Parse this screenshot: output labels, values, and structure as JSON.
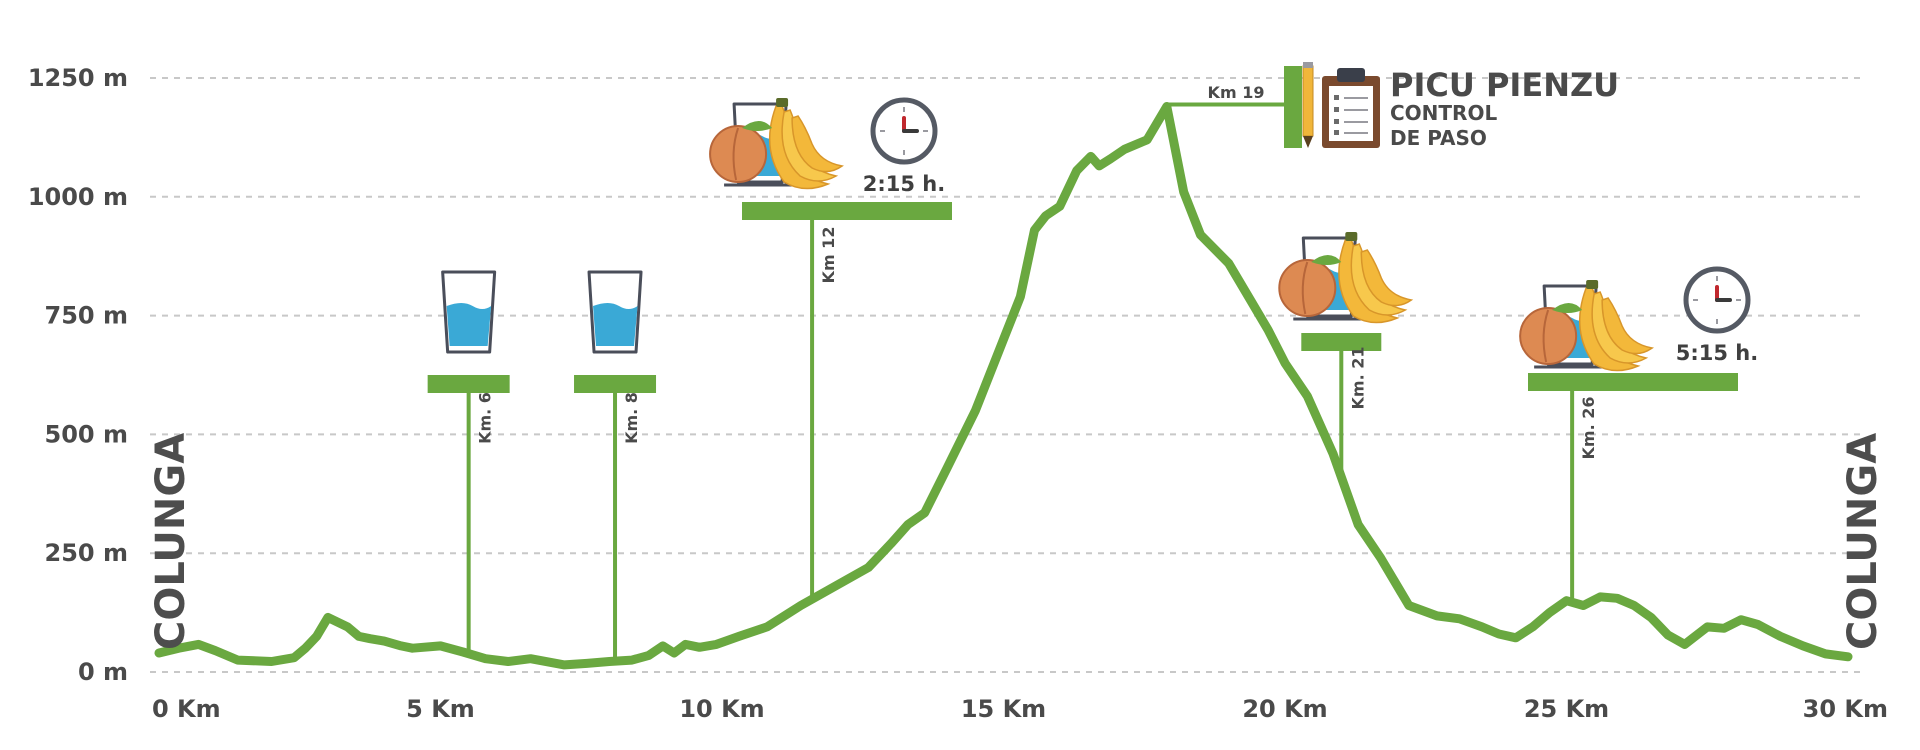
{
  "chart_data": {
    "type": "line",
    "title": "",
    "xlabel": "",
    "ylabel": "",
    "x_unit": "Km",
    "y_unit": "m",
    "xlim": [
      0,
      30
    ],
    "ylim": [
      0,
      1250
    ],
    "x_ticks": [
      "0 Km",
      "5 Km",
      "10 Km",
      "15 Km",
      "20 Km",
      "25 Km",
      "30 Km"
    ],
    "y_ticks": [
      "0 m",
      "250 m",
      "500 m",
      "750 m",
      "1000 m",
      "1250 m"
    ],
    "grid": true,
    "line_color": "#6aa840",
    "series": [
      {
        "x": [
          0,
          0.35,
          0.7,
          1.0,
          1.4,
          2.0,
          2.4,
          2.6,
          2.8,
          3.0,
          3.35,
          3.55,
          3.75,
          4.0,
          4.3,
          4.5,
          5.0,
          5.4,
          5.8,
          6.2,
          6.6,
          7.2,
          7.6,
          8.0,
          8.4,
          8.7,
          8.95,
          9.15,
          9.35,
          9.6,
          9.9,
          10.3,
          10.8,
          11.4,
          12.0,
          12.6,
          13.0,
          13.3,
          13.6,
          14.0,
          14.5,
          15.0,
          15.3,
          15.55,
          15.75,
          16.0,
          16.3,
          16.55,
          16.7,
          16.9,
          17.15,
          17.55,
          17.9,
          18.2,
          18.5,
          19.0,
          19.4,
          19.7,
          20.0,
          20.4,
          20.85,
          21.3,
          21.7,
          22.2,
          22.7,
          23.1,
          23.5,
          23.8,
          24.1,
          24.4,
          24.7,
          25.0,
          25.3,
          25.6,
          25.9,
          26.2,
          26.5,
          26.8,
          27.1,
          27.5,
          27.8,
          28.1,
          28.4,
          28.8,
          29.2,
          29.6,
          30.0
        ],
        "y": [
          40,
          50,
          58,
          45,
          25,
          22,
          30,
          50,
          75,
          115,
          95,
          75,
          70,
          65,
          55,
          50,
          55,
          42,
          28,
          22,
          28,
          15,
          18,
          22,
          25,
          35,
          55,
          40,
          58,
          52,
          58,
          75,
          95,
          140,
          180,
          220,
          270,
          310,
          335,
          430,
          550,
          700,
          790,
          930,
          960,
          980,
          1055,
          1085,
          1065,
          1080,
          1100,
          1120,
          1190,
          1010,
          920,
          860,
          780,
          720,
          650,
          580,
          460,
          310,
          240,
          140,
          118,
          112,
          95,
          80,
          72,
          95,
          125,
          150,
          140,
          158,
          155,
          140,
          115,
          78,
          58,
          95,
          92,
          110,
          100,
          75,
          55,
          38,
          32
        ]
      }
    ],
    "annotations": [
      {
        "km": 5.5,
        "label": "Km. 6",
        "items": [
          "water"
        ]
      },
      {
        "km": 8.1,
        "label": "Km. 8",
        "items": [
          "water"
        ]
      },
      {
        "km": 11.6,
        "label": "Km 12",
        "items": [
          "food"
        ],
        "time": "2:15 h."
      },
      {
        "km": 21.0,
        "label": "Km. 21",
        "items": [
          "food"
        ]
      },
      {
        "km": 25.1,
        "label": "Km. 26",
        "items": [
          "food"
        ],
        "time": "5:15 h."
      }
    ],
    "peak": {
      "label": "Km 19",
      "title": "PICU PIENZU",
      "subtitle_line1": "CONTROL",
      "subtitle_line2": "DE PASO"
    },
    "start_label": "COLUNGA",
    "end_label": "COLUNGA"
  }
}
